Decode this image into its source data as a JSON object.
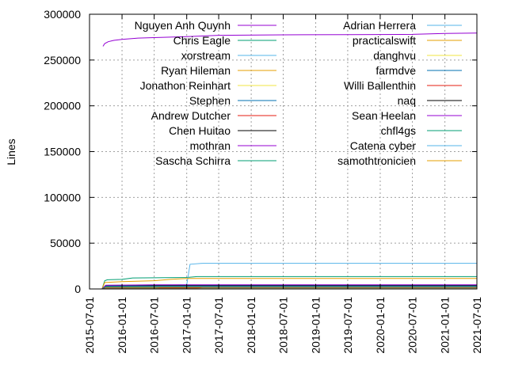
{
  "chart_data": {
    "type": "line",
    "title": "",
    "xlabel": "",
    "ylabel": "Lines",
    "ylim": [
      0,
      300000
    ],
    "xlim": [
      "2015-07-01",
      "2021-07-01"
    ],
    "grid": true,
    "legend_placement": "top, two columns",
    "y_ticks": [
      "0",
      "50000",
      "100000",
      "150000",
      "200000",
      "250000",
      "300000"
    ],
    "y_tick_values": [
      0,
      50000,
      100000,
      150000,
      200000,
      250000,
      300000
    ],
    "x_ticks": [
      "2015-07-01",
      "2016-01-01",
      "2016-07-01",
      "2017-01-01",
      "2017-07-01",
      "2018-01-01",
      "2018-07-01",
      "2019-01-01",
      "2019-07-01",
      "2020-01-01",
      "2020-07-01",
      "2021-01-01",
      "2021-07-01"
    ],
    "series": [
      {
        "name": "Nguyen Anh Quynh",
        "color": "#9400d3",
        "points": [
          [
            "2015-09-15",
            265000
          ],
          [
            "2015-09-25",
            268000
          ],
          [
            "2015-10-15",
            270000
          ],
          [
            "2015-11-15",
            271500
          ],
          [
            "2016-01-01",
            272500
          ],
          [
            "2016-04-01",
            274000
          ],
          [
            "2016-07-01",
            274500
          ],
          [
            "2017-01-01",
            275500
          ],
          [
            "2017-07-01",
            277000
          ],
          [
            "2018-07-01",
            277500
          ],
          [
            "2019-07-01",
            277800
          ],
          [
            "2020-07-01",
            278000
          ],
          [
            "2021-01-01",
            279000
          ],
          [
            "2021-07-01",
            279500
          ]
        ]
      },
      {
        "name": "Chris Eagle",
        "color": "#009e73",
        "points": [
          [
            "2015-09-10",
            0
          ],
          [
            "2015-09-25",
            9000
          ],
          [
            "2015-10-10",
            10000
          ],
          [
            "2016-01-01",
            10500
          ],
          [
            "2016-03-01",
            12000
          ],
          [
            "2017-01-01",
            12500
          ],
          [
            "2017-03-01",
            13500
          ],
          [
            "2021-07-01",
            13500
          ]
        ]
      },
      {
        "name": "xorstream",
        "color": "#56b4e9",
        "points": [
          [
            "2015-09-10",
            0
          ],
          [
            "2015-10-01",
            3500
          ],
          [
            "2016-07-01",
            4000
          ],
          [
            "2017-01-01",
            4500
          ],
          [
            "2017-01-20",
            27000
          ],
          [
            "2017-04-01",
            28000
          ],
          [
            "2021-07-01",
            28000
          ]
        ]
      },
      {
        "name": "Ryan Hileman",
        "color": "#e69f00",
        "points": [
          [
            "2015-09-10",
            0
          ],
          [
            "2015-09-25",
            7000
          ],
          [
            "2016-01-01",
            8000
          ],
          [
            "2016-07-01",
            9000
          ],
          [
            "2016-10-01",
            10500
          ],
          [
            "2017-01-01",
            11500
          ],
          [
            "2021-07-01",
            11500
          ]
        ]
      },
      {
        "name": "Jonathon Reinhart",
        "color": "#f0e442",
        "points": [
          [
            "2015-09-10",
            0
          ],
          [
            "2015-10-01",
            1500
          ],
          [
            "2021-07-01",
            1500
          ]
        ]
      },
      {
        "name": "Stephen",
        "color": "#0072b2",
        "points": [
          [
            "2015-09-10",
            0
          ],
          [
            "2015-10-01",
            3000
          ],
          [
            "2016-07-01",
            3500
          ],
          [
            "2021-07-01",
            3500
          ]
        ]
      },
      {
        "name": "Andrew Dutcher",
        "color": "#e51e10",
        "points": [
          [
            "2015-09-10",
            0
          ],
          [
            "2015-10-01",
            2000
          ],
          [
            "2018-07-01",
            2000
          ],
          [
            "2021-07-01",
            2000
          ]
        ]
      },
      {
        "name": "Chen Huitao",
        "color": "#000000",
        "points": [
          [
            "2015-09-10",
            0
          ],
          [
            "2015-10-01",
            4000
          ],
          [
            "2021-07-01",
            4000
          ]
        ]
      },
      {
        "name": "mothran",
        "color": "#9400d3",
        "points": [
          [
            "2015-09-10",
            0
          ],
          [
            "2015-10-01",
            4000
          ],
          [
            "2016-07-01",
            4500
          ],
          [
            "2021-07-01",
            4500
          ]
        ]
      },
      {
        "name": "Sascha Schirra",
        "color": "#009e73",
        "points": [
          [
            "2015-09-10",
            0
          ],
          [
            "2015-10-01",
            2500
          ],
          [
            "2021-07-01",
            2500
          ]
        ]
      },
      {
        "name": "Adrian Herrera",
        "color": "#56b4e9",
        "points": [
          [
            "2016-01-01",
            0
          ],
          [
            "2016-02-01",
            1000
          ],
          [
            "2021-07-01",
            1000
          ]
        ]
      },
      {
        "name": "practicalswift",
        "color": "#e69f00",
        "points": [
          [
            "2016-01-01",
            0
          ],
          [
            "2016-02-01",
            1200
          ],
          [
            "2021-07-01",
            1200
          ]
        ]
      },
      {
        "name": "danghvu",
        "color": "#f0e442",
        "points": [
          [
            "2015-09-10",
            0
          ],
          [
            "2015-10-01",
            800
          ],
          [
            "2021-07-01",
            800
          ]
        ]
      },
      {
        "name": "farmdve",
        "color": "#0072b2",
        "points": [
          [
            "2015-09-10",
            0
          ],
          [
            "2015-10-01",
            600
          ],
          [
            "2021-07-01",
            600
          ]
        ]
      },
      {
        "name": "Willi Ballenthin",
        "color": "#e51e10",
        "points": [
          [
            "2016-07-01",
            0
          ],
          [
            "2016-08-01",
            900
          ],
          [
            "2021-07-01",
            900
          ]
        ]
      },
      {
        "name": "naq",
        "color": "#000000",
        "points": [
          [
            "2015-09-10",
            0
          ],
          [
            "2015-10-01",
            500
          ],
          [
            "2021-07-01",
            500
          ]
        ]
      },
      {
        "name": "Sean Heelan",
        "color": "#9400d3",
        "points": [
          [
            "2015-09-10",
            0
          ],
          [
            "2015-10-01",
            400
          ],
          [
            "2021-07-01",
            400
          ]
        ]
      },
      {
        "name": "chfl4gs",
        "color": "#009e73",
        "points": [
          [
            "2015-09-10",
            0
          ],
          [
            "2015-10-01",
            300
          ],
          [
            "2021-07-01",
            300
          ]
        ]
      },
      {
        "name": "Catena cyber",
        "color": "#56b4e9",
        "points": [
          [
            "2017-03-01",
            0
          ],
          [
            "2017-04-01",
            700
          ],
          [
            "2021-07-01",
            700
          ]
        ]
      },
      {
        "name": "samothtronicien",
        "color": "#e69f00",
        "points": [
          [
            "2015-09-10",
            0
          ],
          [
            "2015-10-01",
            200
          ],
          [
            "2021-07-01",
            200
          ]
        ]
      }
    ]
  }
}
